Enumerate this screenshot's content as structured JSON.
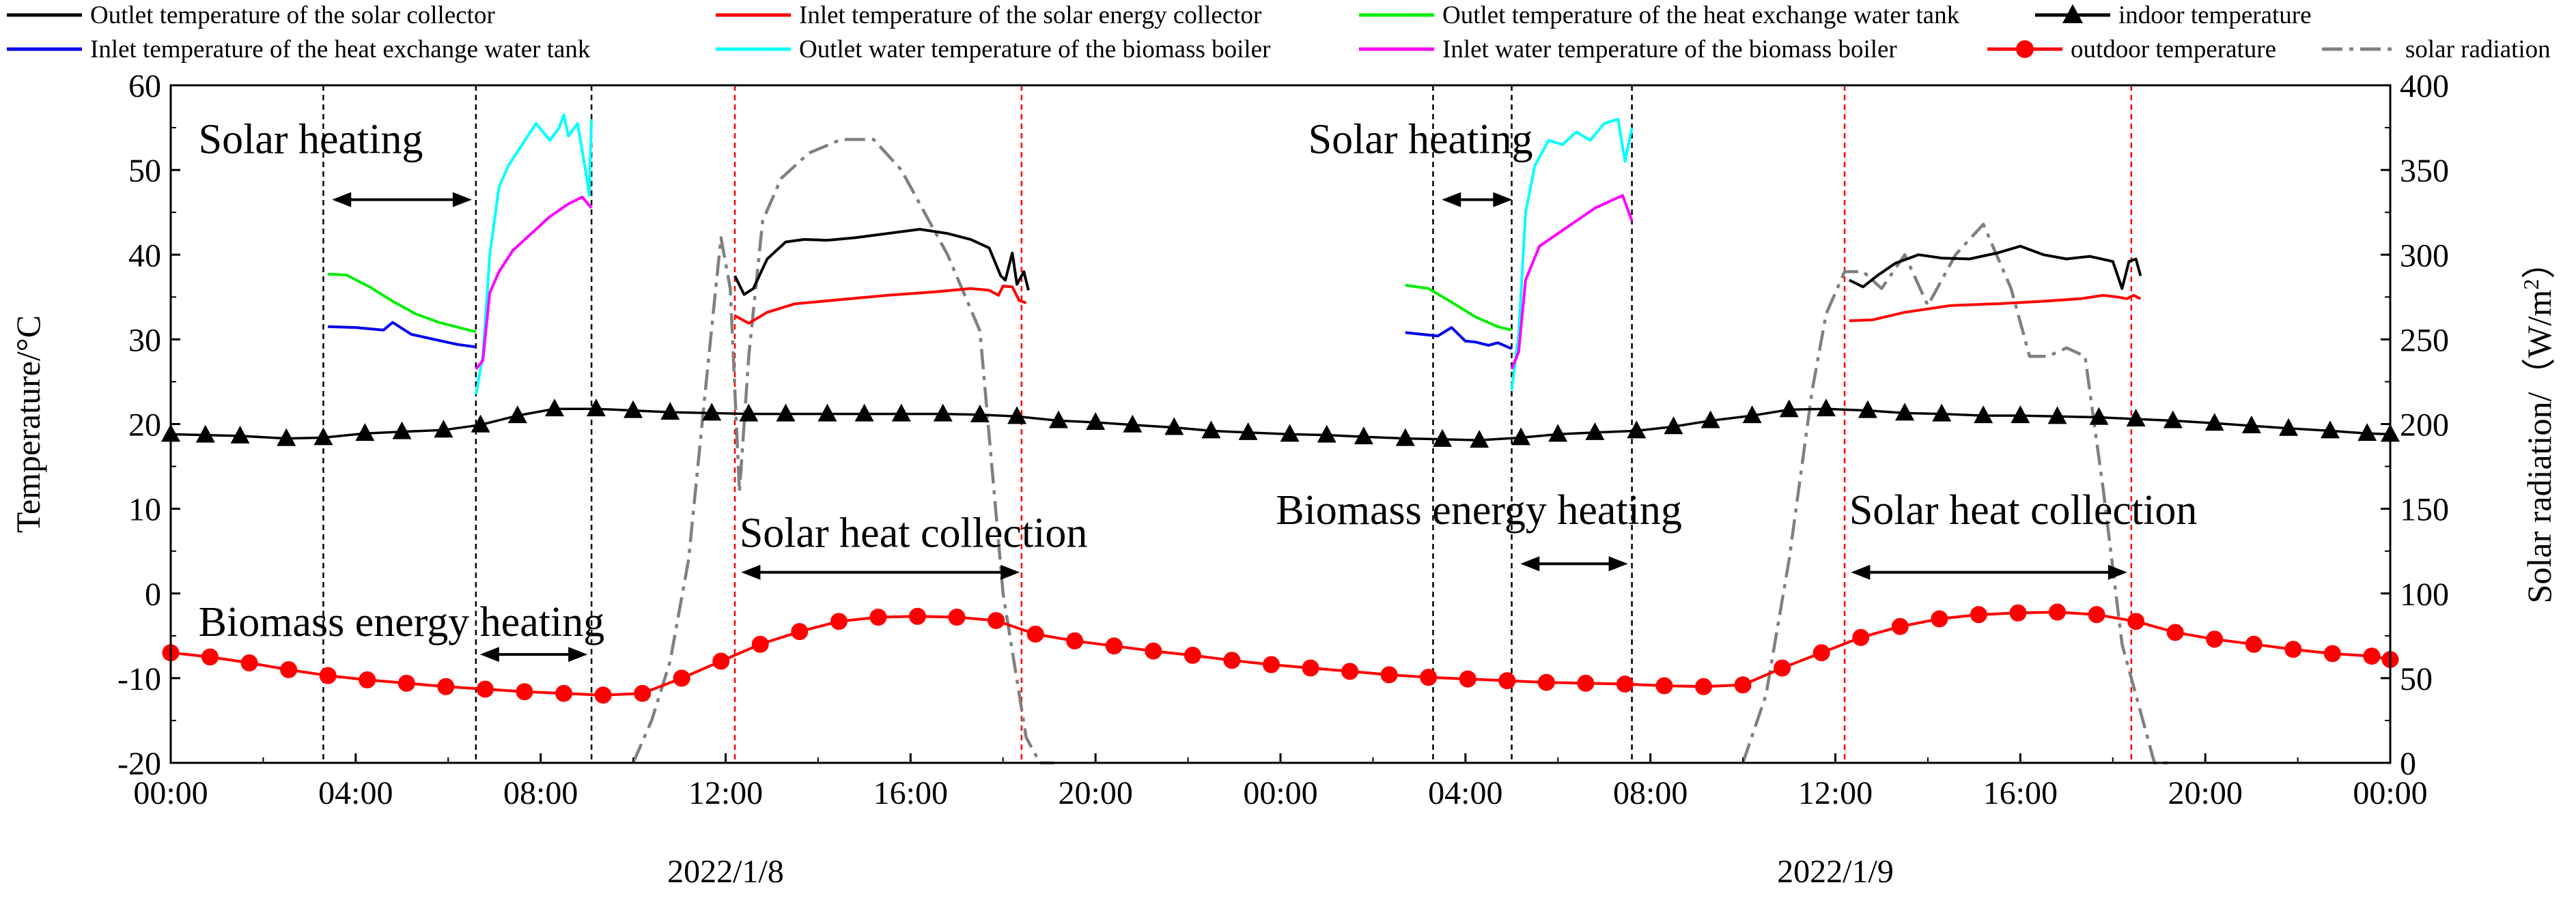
{
  "chart_data": {
    "type": "line",
    "title": "",
    "ylabel": "Temperature/°C",
    "y2label_parts": [
      "Solar radiation/（W/m",
      "2",
      "）"
    ],
    "xlabel": "",
    "ylim": [
      -20,
      60
    ],
    "y2lim": [
      0,
      400
    ],
    "xlim": [
      0,
      48
    ],
    "y_ticks": [
      -20,
      -10,
      0,
      10,
      20,
      30,
      40,
      50,
      60
    ],
    "y2_ticks": [
      0,
      50,
      100,
      150,
      200,
      250,
      300,
      350,
      400
    ],
    "x_ticks": [
      0,
      4,
      8,
      12,
      16,
      20,
      24,
      28,
      32,
      36,
      40,
      44,
      48
    ],
    "x_tick_labels": [
      "00:00",
      "04:00",
      "08:00",
      "12:00",
      "16:00",
      "20:00",
      "00:00",
      "04:00",
      "08:00",
      "12:00",
      "16:00",
      "20:00",
      "00:00"
    ],
    "dates": [
      {
        "label": "2022/1/8",
        "x": 12
      },
      {
        "label": "2022/1/9",
        "x": 36
      }
    ],
    "legend_location": "top",
    "legend": [
      {
        "key": "collector_out",
        "label": "Outlet temperature of the solar collector",
        "color": "#000000",
        "dash": "",
        "marker": "none"
      },
      {
        "key": "collector_in",
        "label": "Inlet temperature of the solar energy collector",
        "color": "#ff0000",
        "dash": "",
        "marker": "none"
      },
      {
        "key": "tank_out",
        "label": "Outlet temperature of the heat exchange water tank",
        "color": "#00ee00",
        "dash": "",
        "marker": "none"
      },
      {
        "key": "indoor",
        "label": "indoor temperature",
        "color": "#000000",
        "dash": "",
        "marker": "triangle"
      },
      {
        "key": "tank_in",
        "label": "Inlet temperature of the heat exchange water tank",
        "color": "#0000ee",
        "dash": "",
        "marker": "none"
      },
      {
        "key": "boiler_out",
        "label": "Outlet water temperature of the biomass boiler",
        "color": "#00ffff",
        "dash": "",
        "marker": "none"
      },
      {
        "key": "boiler_in",
        "label": "Inlet water temperature of the biomass boiler",
        "color": "#ff00ff",
        "dash": "",
        "marker": "none"
      },
      {
        "key": "outdoor",
        "label": "outdoor temperature",
        "color": "#ff0000",
        "dash": "",
        "marker": "circle"
      },
      {
        "key": "solar",
        "label": "solar radiation",
        "color": "#808080",
        "dash": "dashdot",
        "marker": "none"
      }
    ],
    "series": [
      {
        "key": "indoor",
        "name": "indoor temperature",
        "axis": "left",
        "x": [
          0,
          0.75,
          1.5,
          2.5,
          3.3,
          4.2,
          5.0,
          5.9,
          6.7,
          7.5,
          8.3,
          9.2,
          10.0,
          10.8,
          11.7,
          12.5,
          13.3,
          14.2,
          15.0,
          15.8,
          16.7,
          17.5,
          18.3,
          19.2,
          20.0,
          20.8,
          21.7,
          22.5,
          23.3,
          24.2,
          25.0,
          25.8,
          26.7,
          27.5,
          28.3,
          29.2,
          30.0,
          30.8,
          31.7,
          32.5,
          33.3,
          34.2,
          35.0,
          35.8,
          36.7,
          37.5,
          38.3,
          39.2,
          40.0,
          40.8,
          41.7,
          42.5,
          43.3,
          44.2,
          45.0,
          45.8,
          46.7,
          47.5,
          48
        ],
        "values": [
          18.8,
          18.7,
          18.6,
          18.3,
          18.4,
          18.9,
          19.1,
          19.3,
          19.9,
          21.0,
          21.8,
          21.8,
          21.6,
          21.4,
          21.3,
          21.2,
          21.2,
          21.2,
          21.2,
          21.2,
          21.2,
          21.1,
          20.9,
          20.4,
          20.2,
          19.9,
          19.6,
          19.2,
          19.0,
          18.8,
          18.7,
          18.5,
          18.3,
          18.2,
          18.1,
          18.4,
          18.8,
          19.0,
          19.2,
          19.7,
          20.4,
          21.0,
          21.7,
          21.8,
          21.6,
          21.3,
          21.2,
          21.0,
          21.0,
          20.9,
          20.8,
          20.6,
          20.4,
          20.1,
          19.8,
          19.5,
          19.2,
          18.9,
          18.8
        ]
      },
      {
        "key": "outdoor",
        "name": "outdoor temperature",
        "axis": "left",
        "x": [
          0,
          0.85,
          1.7,
          2.55,
          3.4,
          4.25,
          5.1,
          5.95,
          6.8,
          7.65,
          8.5,
          9.35,
          10.2,
          11.05,
          11.9,
          12.75,
          13.6,
          14.45,
          15.3,
          16.15,
          17.0,
          17.85,
          18.7,
          19.55,
          20.4,
          21.25,
          22.1,
          22.95,
          23.8,
          24.65,
          25.5,
          26.35,
          27.2,
          28.05,
          28.9,
          29.75,
          30.6,
          31.45,
          32.3,
          33.15,
          34.0,
          34.85,
          35.7,
          36.55,
          37.4,
          38.25,
          39.1,
          39.95,
          40.8,
          41.65,
          42.5,
          43.35,
          44.2,
          45.05,
          45.9,
          46.75,
          47.6,
          48
        ],
        "values": [
          -7.0,
          -7.5,
          -8.2,
          -9.0,
          -9.7,
          -10.2,
          -10.6,
          -11.0,
          -11.3,
          -11.6,
          -11.8,
          -12.0,
          -11.8,
          -10.0,
          -8.0,
          -6.0,
          -4.5,
          -3.3,
          -2.8,
          -2.7,
          -2.8,
          -3.2,
          -4.8,
          -5.6,
          -6.2,
          -6.8,
          -7.3,
          -7.9,
          -8.4,
          -8.8,
          -9.2,
          -9.6,
          -9.9,
          -10.1,
          -10.3,
          -10.5,
          -10.6,
          -10.7,
          -10.9,
          -11.0,
          -10.8,
          -8.8,
          -7.0,
          -5.2,
          -3.9,
          -3.0,
          -2.5,
          -2.3,
          -2.2,
          -2.5,
          -3.3,
          -4.6,
          -5.4,
          -6.0,
          -6.6,
          -7.1,
          -7.4,
          -7.8
        ]
      },
      {
        "key": "collector_out",
        "name": "Outlet temperature of the solar collector",
        "axis": "left",
        "x": [
          12.2,
          12.4,
          12.6,
          12.9,
          13.3,
          13.7,
          14.2,
          14.8,
          15.5,
          16.2,
          16.8,
          17.3,
          17.7,
          17.95,
          18.05,
          18.2,
          18.3,
          18.45,
          18.55,
          36.3,
          36.6,
          36.9,
          37.3,
          37.8,
          38.3,
          38.9,
          39.5,
          40.0,
          40.5,
          41.0,
          41.5,
          42.0,
          42.2,
          42.35,
          42.5,
          42.6
        ],
        "values": [
          37.5,
          35.3,
          36.0,
          39.5,
          41.5,
          41.8,
          41.7,
          42.0,
          42.5,
          43.0,
          42.5,
          41.8,
          40.8,
          37.5,
          37.0,
          40.2,
          36.5,
          38.0,
          35.8,
          37.0,
          36.2,
          37.5,
          39.0,
          40.0,
          39.6,
          39.5,
          40.2,
          41.0,
          40.0,
          39.5,
          39.8,
          39.2,
          36.0,
          39.2,
          39.5,
          37.5
        ]
      },
      {
        "key": "collector_in",
        "name": "Inlet temperature of the solar energy collector",
        "axis": "left",
        "x": [
          12.2,
          12.5,
          12.9,
          13.5,
          14.5,
          15.5,
          16.5,
          17.3,
          17.7,
          17.9,
          18.0,
          18.2,
          18.35,
          18.5,
          36.3,
          36.8,
          37.5,
          38.5,
          39.5,
          40.5,
          41.3,
          41.8,
          42.1,
          42.3,
          42.45,
          42.6
        ],
        "values": [
          32.8,
          31.9,
          33.2,
          34.2,
          34.7,
          35.2,
          35.6,
          36.0,
          35.8,
          35.2,
          36.3,
          36.2,
          34.6,
          34.3,
          32.2,
          32.3,
          33.2,
          34.0,
          34.2,
          34.5,
          34.8,
          35.2,
          35.0,
          34.8,
          35.2,
          34.8
        ]
      },
      {
        "key": "tank_out",
        "name": "Outlet temperature of the heat exchange water tank",
        "axis": "left",
        "x": [
          3.4,
          3.8,
          4.3,
          4.8,
          5.3,
          5.8,
          6.3,
          6.6,
          26.7,
          27.2,
          27.7,
          28.2,
          28.7,
          29.0
        ],
        "values": [
          37.7,
          37.6,
          36.2,
          34.5,
          33.0,
          32.0,
          31.3,
          30.9,
          36.4,
          36.0,
          34.4,
          32.7,
          31.5,
          31.1
        ]
      },
      {
        "key": "tank_in",
        "name": "Inlet temperature of the heat exchange water tank",
        "axis": "left",
        "x": [
          3.4,
          4.0,
          4.6,
          4.8,
          5.2,
          5.7,
          6.2,
          6.6,
          26.7,
          27.4,
          27.7,
          28.0,
          28.2,
          28.5,
          28.7,
          29.0
        ],
        "values": [
          31.5,
          31.4,
          31.1,
          32.0,
          30.6,
          30.0,
          29.4,
          29.1,
          30.8,
          30.4,
          31.4,
          29.8,
          29.7,
          29.3,
          29.6,
          28.9
        ]
      },
      {
        "key": "boiler_out",
        "name": "Outlet water temperature of the biomass boiler",
        "axis": "left",
        "x": [
          6.6,
          6.75,
          6.9,
          7.1,
          7.3,
          7.6,
          7.9,
          8.2,
          8.4,
          8.5,
          8.6,
          8.8,
          9.0,
          9.05,
          9.1,
          29.0,
          29.15,
          29.3,
          29.5,
          29.8,
          30.1,
          30.4,
          30.7,
          31.0,
          31.3,
          31.45,
          31.6
        ],
        "values": [
          23.5,
          28.0,
          40.0,
          48.0,
          50.5,
          53.0,
          55.5,
          53.5,
          55.0,
          56.5,
          54.0,
          55.5,
          49.0,
          47.0,
          56.0,
          24.0,
          30.5,
          45.0,
          50.5,
          53.5,
          53.0,
          54.5,
          53.5,
          55.5,
          56.0,
          51.0,
          55.0
        ]
      },
      {
        "key": "boiler_in",
        "name": "Inlet water temperature of the biomass boiler",
        "axis": "left",
        "x": [
          6.6,
          6.75,
          6.9,
          7.1,
          7.4,
          7.8,
          8.2,
          8.6,
          8.9,
          9.1,
          29.0,
          29.15,
          29.3,
          29.6,
          30.0,
          30.4,
          30.8,
          31.2,
          31.4,
          31.6
        ],
        "values": [
          26.5,
          27.5,
          35.5,
          38.0,
          40.5,
          42.5,
          44.5,
          46.0,
          46.8,
          45.5,
          26.5,
          28.5,
          37.0,
          41.0,
          42.5,
          44.0,
          45.5,
          46.5,
          47.0,
          44.0
        ]
      },
      {
        "key": "solar",
        "name": "solar radiation",
        "axis": "right",
        "x": [
          10.0,
          10.4,
          10.8,
          11.2,
          11.6,
          11.9,
          12.1,
          12.3,
          12.5,
          12.8,
          13.2,
          13.8,
          14.5,
          15.2,
          15.8,
          16.3,
          16.8,
          17.5,
          18.0,
          18.5,
          18.8,
          19.1,
          34.0,
          34.5,
          35.0,
          35.5,
          35.8,
          36.2,
          36.6,
          37.0,
          37.5,
          38.0,
          38.6,
          39.2,
          39.8,
          40.2,
          40.6,
          41.0,
          41.4,
          41.8,
          42.2,
          42.6,
          42.9,
          43.2
        ],
        "values": [
          0,
          25,
          60,
          120,
          230,
          310,
          280,
          160,
          240,
          320,
          345,
          360,
          368,
          368,
          350,
          325,
          300,
          255,
          100,
          15,
          0,
          0,
          0,
          40,
          120,
          220,
          265,
          290,
          290,
          280,
          300,
          270,
          300,
          318,
          280,
          240,
          240,
          245,
          240,
          160,
          70,
          30,
          0,
          0
        ]
      }
    ],
    "annotations": [
      {
        "text": "Solar heating",
        "x": 0.6,
        "y": 52
      },
      {
        "text": "Biomass energy heating",
        "x": 0.6,
        "y": -5
      },
      {
        "text": "Solar heat collection",
        "x": 12.3,
        "y": 5.5
      },
      {
        "text": "Solar heating",
        "x": 24.6,
        "y": 52
      },
      {
        "text": "Biomass energy heating",
        "x": 23.9,
        "y": 8.2
      },
      {
        "text": "Solar heat collection",
        "x": 36.3,
        "y": 8.2
      }
    ],
    "phase_arrows": [
      {
        "x1": 3.4,
        "x2": 6.6,
        "y": 46.5
      },
      {
        "x1": 6.6,
        "x2": 9.1,
        "y": -7.2
      },
      {
        "x1": 12.25,
        "x2": 18.45,
        "y": 2.5
      },
      {
        "x1": 27.4,
        "x2": 29.1,
        "y": 46.5
      },
      {
        "x1": 29.1,
        "x2": 31.6,
        "y": 3.5
      },
      {
        "x1": 36.25,
        "x2": 42.4,
        "y": 2.5
      }
    ],
    "phase_lines": [
      {
        "x": 3.3,
        "color": "#000000"
      },
      {
        "x": 6.6,
        "color": "#000000"
      },
      {
        "x": 9.1,
        "color": "#000000"
      },
      {
        "x": 12.2,
        "color": "#ff0000"
      },
      {
        "x": 18.4,
        "color": "#ff0000"
      },
      {
        "x": 27.3,
        "color": "#000000"
      },
      {
        "x": 29.0,
        "color": "#000000"
      },
      {
        "x": 31.6,
        "color": "#000000"
      },
      {
        "x": 36.2,
        "color": "#ff0000"
      },
      {
        "x": 42.4,
        "color": "#ff0000"
      }
    ]
  }
}
